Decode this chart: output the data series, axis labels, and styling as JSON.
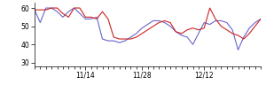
{
  "blue_y": [
    59,
    52,
    60,
    60,
    58,
    55,
    58,
    60,
    57,
    54,
    54,
    55,
    43,
    42,
    42,
    41,
    42,
    44,
    46,
    49,
    51,
    53,
    53,
    52,
    50,
    47,
    45,
    44,
    40,
    46,
    52,
    51,
    53,
    53,
    52,
    48,
    37,
    44,
    49,
    52,
    54
  ],
  "red_y": [
    59,
    59,
    59,
    60,
    60,
    57,
    55,
    60,
    60,
    55,
    55,
    54,
    58,
    54,
    44,
    43,
    43,
    43,
    44,
    46,
    48,
    50,
    52,
    53,
    52,
    47,
    46,
    48,
    49,
    48,
    49,
    60,
    54,
    50,
    48,
    46,
    45,
    43,
    46,
    50,
    54
  ],
  "xtick_positions": [
    9,
    19,
    30
  ],
  "xtick_labels": [
    "11/14",
    "11/28",
    "12/12"
  ],
  "ytick_positions": [
    30,
    40,
    50,
    60
  ],
  "ytick_labels": [
    "30",
    "40",
    "50",
    "60"
  ],
  "ylim": [
    28,
    63
  ],
  "xlim": [
    0,
    40
  ],
  "blue_color": "#6666cc",
  "red_color": "#cc2222",
  "bg_color": "#ffffff",
  "linewidth": 0.8
}
